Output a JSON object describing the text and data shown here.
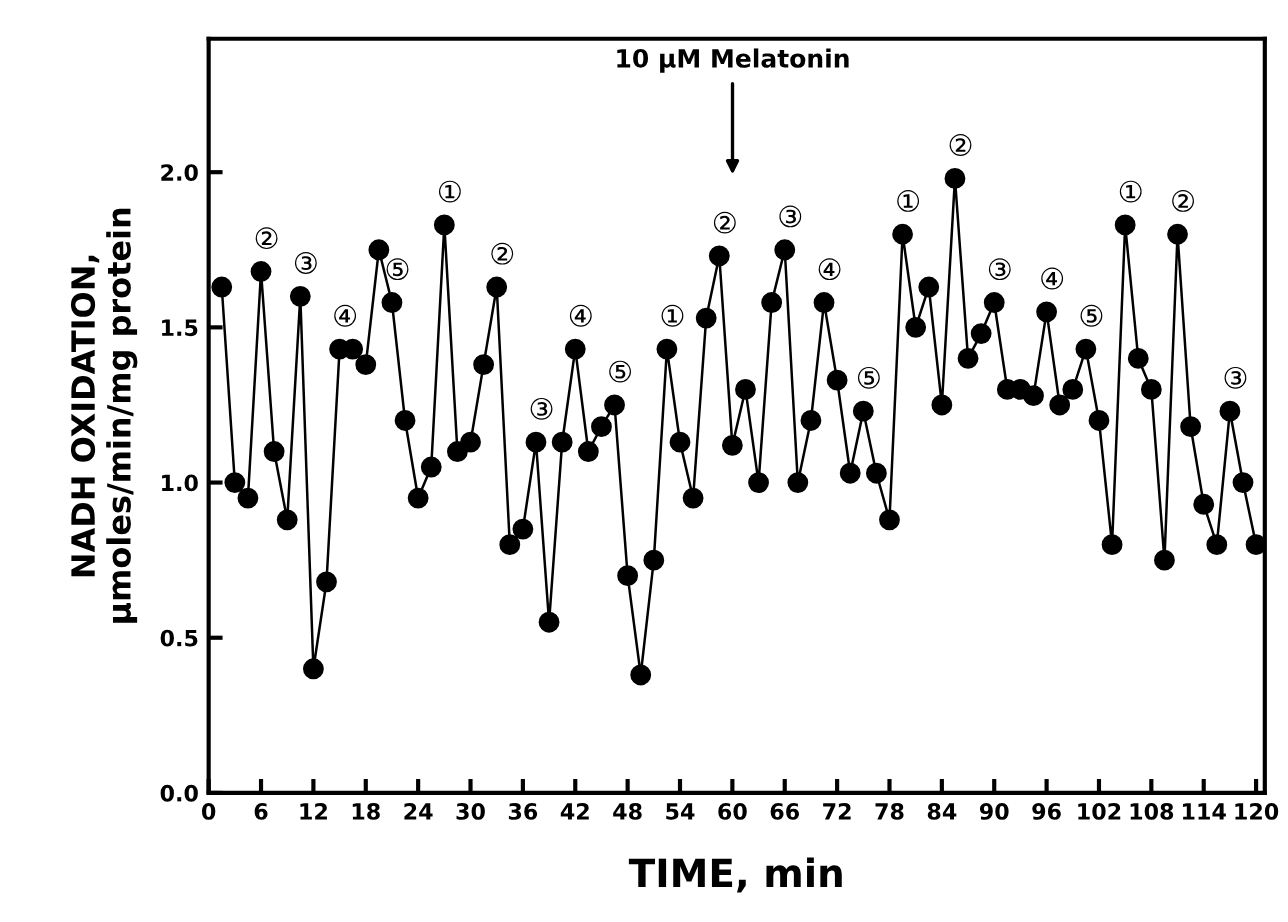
{
  "chart_data": {
    "type": "line",
    "xlabel": "TIME, min",
    "ylabel": "NADH OXIDATION,\nµmoles/min/mg protein",
    "x": [
      1.5,
      3,
      4.5,
      6,
      7.5,
      9,
      10.5,
      12,
      13.5,
      15,
      16.5,
      18,
      19.5,
      21,
      22.5,
      24,
      25.5,
      27,
      28.5,
      30,
      31.5,
      33,
      34.5,
      36,
      37.5,
      39,
      40.5,
      42,
      43.5,
      45,
      46.5,
      48,
      49.5,
      51,
      52.5,
      54,
      55.5,
      57,
      58.5,
      60,
      61.5,
      63,
      64.5,
      66,
      67.5,
      69,
      70.5,
      72,
      73.5,
      75,
      76.5,
      78,
      79.5,
      81,
      82.5,
      84,
      85.5,
      87,
      88.5,
      90,
      91.5,
      93,
      94.5,
      96,
      97.5,
      99,
      100.5,
      102,
      103.5,
      105,
      106.5,
      108,
      109.5,
      111,
      112.5,
      114,
      115.5,
      117,
      118.5,
      120
    ],
    "series": [
      {
        "color": "#000000",
        "values": [
          1.63,
          1.0,
          0.95,
          1.68,
          1.1,
          0.88,
          1.6,
          0.4,
          0.68,
          1.43,
          1.43,
          1.38,
          1.75,
          1.58,
          1.2,
          0.95,
          1.05,
          1.83,
          1.1,
          1.13,
          1.38,
          1.63,
          0.8,
          0.85,
          1.13,
          0.55,
          1.13,
          1.43,
          1.1,
          1.18,
          1.25,
          0.7,
          0.38,
          0.75,
          1.43,
          1.13,
          0.95,
          1.53,
          1.73,
          1.12,
          1.3,
          1.0,
          1.58,
          1.75,
          1.0,
          1.2,
          1.58,
          1.33,
          1.03,
          1.23,
          1.03,
          0.88,
          1.8,
          1.5,
          1.63,
          1.25,
          1.98,
          1.4,
          1.48,
          1.58,
          1.3,
          1.3,
          1.28,
          1.55,
          1.25,
          1.3,
          1.43,
          1.2,
          0.8,
          1.83,
          1.4,
          1.3,
          0.75,
          1.8,
          1.18,
          0.93,
          0.8,
          1.23,
          1.0,
          0.8
        ]
      }
    ],
    "marker": "circle",
    "line_style": "solid",
    "grid": false,
    "legend": false,
    "xlim": [
      0,
      121
    ],
    "ylim": [
      0,
      2.43
    ],
    "xticks": [
      0,
      6,
      12,
      18,
      24,
      30,
      36,
      42,
      48,
      54,
      60,
      66,
      72,
      78,
      84,
      90,
      96,
      102,
      108,
      114,
      120
    ],
    "yticks": [
      {
        "value": 0,
        "label": "0.0"
      },
      {
        "value": 0.5,
        "label": "0.5"
      },
      {
        "value": 1,
        "label": "1.0"
      },
      {
        "value": 1.5,
        "label": "1.5"
      },
      {
        "value": 2,
        "label": "2.0"
      }
    ],
    "annotations": [
      "10 µM Melatonin",
      {
        "text": "②",
        "x": 6,
        "y": 1.68
      },
      {
        "text": "③",
        "x": 10.5,
        "y": 1.6
      },
      {
        "text": "④",
        "x": 15,
        "y": 1.43
      },
      {
        "text": "⑤",
        "x": 21,
        "y": 1.58
      },
      {
        "text": "①",
        "x": 27,
        "y": 1.83
      },
      {
        "text": "②",
        "x": 33,
        "y": 1.63
      },
      {
        "text": "③",
        "x": 37.5,
        "y": 1.13
      },
      {
        "text": "④",
        "x": 42,
        "y": 1.43
      },
      {
        "text": "⑤",
        "x": 46.5,
        "y": 1.25
      },
      {
        "text": "①",
        "x": 52.5,
        "y": 1.43
      },
      {
        "text": "②",
        "x": 58.5,
        "y": 1.73
      },
      {
        "text": "③",
        "x": 66,
        "y": 1.75
      },
      {
        "text": "④",
        "x": 70.5,
        "y": 1.58
      },
      {
        "text": "⑤",
        "x": 75,
        "y": 1.23
      },
      {
        "text": "①",
        "x": 79.5,
        "y": 1.8
      },
      {
        "text": "②",
        "x": 85.5,
        "y": 1.98
      },
      {
        "text": "③",
        "x": 90,
        "y": 1.58
      },
      {
        "text": "④",
        "x": 96,
        "y": 1.55
      },
      {
        "text": "⑤",
        "x": 100.5,
        "y": 1.43
      },
      {
        "text": "①",
        "x": 105,
        "y": 1.83
      },
      {
        "text": "②",
        "x": 111,
        "y": 1.8
      },
      {
        "text": "③",
        "x": 117,
        "y": 1.23
      }
    ]
  }
}
